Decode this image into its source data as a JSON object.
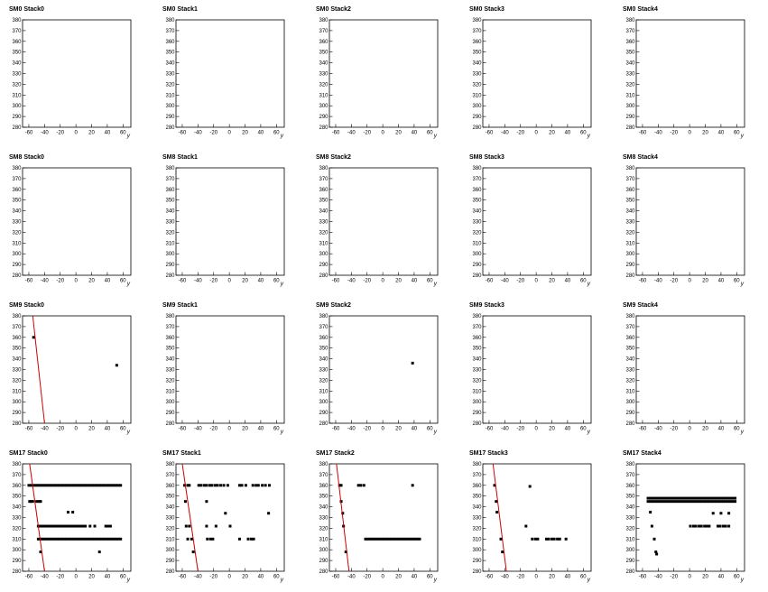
{
  "chart_data": [
    {
      "type": "scatter",
      "title": "SM0 Stack0",
      "x_label": "y",
      "color": "#000000",
      "x": [],
      "y": [],
      "xlim": [
        -68,
        70
      ],
      "xticks": [
        -60,
        -40,
        -20,
        0,
        20,
        40,
        60
      ],
      "ylim": [
        280,
        380
      ],
      "yticks": [
        280,
        290,
        300,
        310,
        320,
        330,
        340,
        350,
        360,
        370,
        380
      ]
    },
    {
      "type": "scatter",
      "title": "SM0 Stack1",
      "x_label": "y",
      "color": "#000000",
      "x": [],
      "y": [],
      "xlim": [
        -68,
        70
      ],
      "xticks": [
        -60,
        -40,
        -20,
        0,
        20,
        40,
        60
      ],
      "ylim": [
        280,
        380
      ],
      "yticks": [
        280,
        290,
        300,
        310,
        320,
        330,
        340,
        350,
        360,
        370,
        380
      ]
    },
    {
      "type": "scatter",
      "title": "SM0 Stack2",
      "x_label": "y",
      "color": "#000000",
      "x": [],
      "y": [],
      "xlim": [
        -68,
        70
      ],
      "xticks": [
        -60,
        -40,
        -20,
        0,
        20,
        40,
        60
      ],
      "ylim": [
        280,
        380
      ],
      "yticks": [
        280,
        290,
        300,
        310,
        320,
        330,
        340,
        350,
        360,
        370,
        380
      ]
    },
    {
      "type": "scatter",
      "title": "SM0 Stack3",
      "x_label": "y",
      "color": "#000000",
      "x": [],
      "y": [],
      "xlim": [
        -68,
        70
      ],
      "xticks": [
        -60,
        -40,
        -20,
        0,
        20,
        40,
        60
      ],
      "ylim": [
        280,
        380
      ],
      "yticks": [
        280,
        290,
        300,
        310,
        320,
        330,
        340,
        350,
        360,
        370,
        380
      ]
    },
    {
      "type": "scatter",
      "title": "SM0 Stack4",
      "x_label": "y",
      "color": "#000000",
      "x": [],
      "y": [],
      "xlim": [
        -68,
        70
      ],
      "xticks": [
        -60,
        -40,
        -20,
        0,
        20,
        40,
        60
      ],
      "ylim": [
        280,
        380
      ],
      "yticks": [
        280,
        290,
        300,
        310,
        320,
        330,
        340,
        350,
        360,
        370,
        380
      ]
    },
    {
      "type": "scatter",
      "title": "SM8 Stack0",
      "x_label": "y",
      "color": "#000000",
      "x": [],
      "y": [],
      "xlim": [
        -68,
        70
      ],
      "xticks": [
        -60,
        -40,
        -20,
        0,
        20,
        40,
        60
      ],
      "ylim": [
        280,
        380
      ],
      "yticks": [
        280,
        290,
        300,
        310,
        320,
        330,
        340,
        350,
        360,
        370,
        380
      ]
    },
    {
      "type": "scatter",
      "title": "SM8 Stack1",
      "x_label": "y",
      "color": "#000000",
      "x": [],
      "y": [],
      "xlim": [
        -68,
        70
      ],
      "xticks": [
        -60,
        -40,
        -20,
        0,
        20,
        40,
        60
      ],
      "ylim": [
        280,
        380
      ],
      "yticks": [
        280,
        290,
        300,
        310,
        320,
        330,
        340,
        350,
        360,
        370,
        380
      ]
    },
    {
      "type": "scatter",
      "title": "SM8 Stack2",
      "x_label": "y",
      "color": "#000000",
      "x": [],
      "y": [],
      "xlim": [
        -68,
        70
      ],
      "xticks": [
        -60,
        -40,
        -20,
        0,
        20,
        40,
        60
      ],
      "ylim": [
        280,
        380
      ],
      "yticks": [
        280,
        290,
        300,
        310,
        320,
        330,
        340,
        350,
        360,
        370,
        380
      ]
    },
    {
      "type": "scatter",
      "title": "SM8 Stack3",
      "x_label": "y",
      "color": "#000000",
      "x": [],
      "y": [],
      "xlim": [
        -68,
        70
      ],
      "xticks": [
        -60,
        -40,
        -20,
        0,
        20,
        40,
        60
      ],
      "ylim": [
        280,
        380
      ],
      "yticks": [
        280,
        290,
        300,
        310,
        320,
        330,
        340,
        350,
        360,
        370,
        380
      ]
    },
    {
      "type": "scatter",
      "title": "SM8 Stack4",
      "x_label": "y",
      "color": "#000000",
      "x": [],
      "y": [],
      "xlim": [
        -68,
        70
      ],
      "xticks": [
        -60,
        -40,
        -20,
        0,
        20,
        40,
        60
      ],
      "ylim": [
        280,
        380
      ],
      "yticks": [
        280,
        290,
        300,
        310,
        320,
        330,
        340,
        350,
        360,
        370,
        380
      ]
    },
    {
      "type": "scatter",
      "title": "SM9 Stack0",
      "x_label": "y",
      "color": "#000000",
      "x": [
        -54,
        52
      ],
      "y": [
        360,
        334
      ],
      "fit": {
        "x": [
          -55,
          -40
        ],
        "y": [
          380,
          280
        ],
        "color": "#cc0000"
      },
      "xlim": [
        -68,
        70
      ],
      "xticks": [
        -60,
        -40,
        -20,
        0,
        20,
        40,
        60
      ],
      "ylim": [
        280,
        380
      ],
      "yticks": [
        280,
        290,
        300,
        310,
        320,
        330,
        340,
        350,
        360,
        370,
        380
      ]
    },
    {
      "type": "scatter",
      "title": "SM9 Stack1",
      "x_label": "y",
      "color": "#000000",
      "x": [],
      "y": [],
      "xlim": [
        -68,
        70
      ],
      "xticks": [
        -60,
        -40,
        -20,
        0,
        20,
        40,
        60
      ],
      "ylim": [
        280,
        380
      ],
      "yticks": [
        280,
        290,
        300,
        310,
        320,
        330,
        340,
        350,
        360,
        370,
        380
      ]
    },
    {
      "type": "scatter",
      "title": "SM9 Stack2",
      "x_label": "y",
      "color": "#000000",
      "x": [
        38
      ],
      "y": [
        336
      ],
      "xlim": [
        -68,
        70
      ],
      "xticks": [
        -60,
        -40,
        -20,
        0,
        20,
        40,
        60
      ],
      "ylim": [
        280,
        380
      ],
      "yticks": [
        280,
        290,
        300,
        310,
        320,
        330,
        340,
        350,
        360,
        370,
        380
      ]
    },
    {
      "type": "scatter",
      "title": "SM9 Stack3",
      "x_label": "y",
      "color": "#000000",
      "x": [],
      "y": [],
      "xlim": [
        -68,
        70
      ],
      "xticks": [
        -60,
        -40,
        -20,
        0,
        20,
        40,
        60
      ],
      "ylim": [
        280,
        380
      ],
      "yticks": [
        280,
        290,
        300,
        310,
        320,
        330,
        340,
        350,
        360,
        370,
        380
      ]
    },
    {
      "type": "scatter",
      "title": "SM9 Stack4",
      "x_label": "y",
      "color": "#000000",
      "x": [],
      "y": [],
      "xlim": [
        -68,
        70
      ],
      "xticks": [
        -60,
        -40,
        -20,
        0,
        20,
        40,
        60
      ],
      "ylim": [
        280,
        380
      ],
      "yticks": [
        280,
        290,
        300,
        310,
        320,
        330,
        340,
        350,
        360,
        370,
        380
      ]
    },
    {
      "type": "scatter",
      "title": "SM17 Stack0",
      "x_label": "y",
      "color": "#000000",
      "x": [
        -60,
        -57,
        -54,
        -51,
        -48,
        -45,
        -42,
        -39,
        -36,
        -33,
        -30,
        -27,
        -24,
        -21,
        -18,
        -15,
        -12,
        -9,
        -6,
        -3,
        0,
        3,
        6,
        9,
        12,
        15,
        18,
        21,
        24,
        27,
        30,
        33,
        36,
        39,
        42,
        45,
        48,
        51,
        54,
        57,
        -59,
        -57,
        -55,
        -50,
        -47,
        -45,
        -48,
        -45,
        -42,
        -39,
        -36,
        -33,
        -30,
        -27,
        -24,
        -21,
        -18,
        -15,
        -12,
        -9,
        -6,
        -3,
        0,
        3,
        6,
        9,
        12,
        18,
        24,
        38,
        41,
        44,
        -48,
        -45,
        -42,
        -39,
        -36,
        -33,
        -30,
        -27,
        -24,
        -21,
        -18,
        -15,
        -12,
        -9,
        -6,
        -3,
        0,
        3,
        6,
        9,
        12,
        15,
        18,
        21,
        24,
        27,
        30,
        33,
        36,
        39,
        42,
        45,
        48,
        51,
        54,
        57,
        -10,
        -4,
        -45,
        30
      ],
      "y": [
        360,
        360,
        360,
        360,
        360,
        360,
        360,
        360,
        360,
        360,
        360,
        360,
        360,
        360,
        360,
        360,
        360,
        360,
        360,
        360,
        360,
        360,
        360,
        360,
        360,
        360,
        360,
        360,
        360,
        360,
        360,
        360,
        360,
        360,
        360,
        360,
        360,
        360,
        360,
        360,
        345,
        345,
        345,
        345,
        345,
        345,
        322,
        322,
        322,
        322,
        322,
        322,
        322,
        322,
        322,
        322,
        322,
        322,
        322,
        322,
        322,
        322,
        322,
        322,
        322,
        322,
        322,
        322,
        322,
        322,
        322,
        322,
        310,
        310,
        310,
        310,
        310,
        310,
        310,
        310,
        310,
        310,
        310,
        310,
        310,
        310,
        310,
        310,
        310,
        310,
        310,
        310,
        310,
        310,
        310,
        310,
        310,
        310,
        310,
        310,
        310,
        310,
        310,
        310,
        310,
        310,
        310,
        310,
        335,
        335,
        298,
        298
      ],
      "fit": {
        "x": [
          -59,
          -40
        ],
        "y": [
          380,
          280
        ],
        "color": "#cc0000"
      },
      "xlim": [
        -68,
        70
      ],
      "xticks": [
        -60,
        -40,
        -20,
        0,
        20,
        40,
        60
      ],
      "ylim": [
        280,
        380
      ],
      "yticks": [
        280,
        290,
        300,
        310,
        320,
        330,
        340,
        350,
        360,
        370,
        380
      ]
    },
    {
      "type": "scatter",
      "title": "SM17 Stack1",
      "x_label": "y",
      "color": "#000000",
      "x": [
        -57,
        -53,
        -51,
        -39,
        -36,
        -32,
        -29,
        -25,
        -22,
        -18,
        -15,
        -11,
        -7,
        -2,
        13,
        16,
        21,
        30,
        34,
        37,
        42,
        46,
        51,
        -56,
        -29,
        -55,
        -51,
        -29,
        -17,
        1,
        -5,
        50,
        -53,
        -48,
        -28,
        -24,
        -21,
        13,
        24,
        28,
        31,
        -46
      ],
      "y": [
        360,
        360,
        360,
        360,
        360,
        360,
        360,
        360,
        360,
        360,
        360,
        360,
        360,
        360,
        360,
        360,
        360,
        360,
        360,
        360,
        360,
        360,
        360,
        345,
        345,
        322,
        322,
        322,
        322,
        322,
        334,
        334,
        310,
        310,
        310,
        310,
        310,
        310,
        310,
        310,
        310,
        298
      ],
      "fit": {
        "x": [
          -60,
          -40
        ],
        "y": [
          380,
          280
        ],
        "color": "#cc0000"
      },
      "xlim": [
        -68,
        70
      ],
      "xticks": [
        -60,
        -40,
        -20,
        0,
        20,
        40,
        60
      ],
      "ylim": [
        280,
        380
      ],
      "yticks": [
        280,
        290,
        300,
        310,
        320,
        330,
        340,
        350,
        360,
        370,
        380
      ]
    },
    {
      "type": "scatter",
      "title": "SM17 Stack2",
      "x_label": "y",
      "color": "#000000",
      "x": [
        -55,
        -53,
        -31,
        -28,
        -24,
        38,
        -53,
        -51,
        -50,
        -47,
        -22,
        -19,
        -16,
        -13,
        -10,
        -7,
        -4,
        -1,
        2,
        5,
        8,
        11,
        14,
        17,
        20,
        23,
        26,
        29,
        32,
        35,
        38,
        41,
        44,
        47
      ],
      "y": [
        360,
        360,
        360,
        360,
        360,
        360,
        345,
        334,
        322,
        298,
        310,
        310,
        310,
        310,
        310,
        310,
        310,
        310,
        310,
        310,
        310,
        310,
        310,
        310,
        310,
        310,
        310,
        310,
        310,
        310,
        310,
        310,
        310,
        310
      ],
      "fit": {
        "x": [
          -59,
          -43
        ],
        "y": [
          380,
          280
        ],
        "color": "#cc0000"
      },
      "xlim": [
        -68,
        70
      ],
      "xticks": [
        -60,
        -40,
        -20,
        0,
        20,
        40,
        60
      ],
      "ylim": [
        280,
        380
      ],
      "yticks": [
        280,
        290,
        300,
        310,
        320,
        330,
        340,
        350,
        360,
        370,
        380
      ]
    },
    {
      "type": "scatter",
      "title": "SM17 Stack3",
      "x_label": "y",
      "color": "#000000",
      "x": [
        -53,
        -8,
        -51,
        -50,
        -13,
        -43,
        -45,
        -5,
        -1,
        2,
        13,
        16,
        20,
        23,
        27,
        30,
        38
      ],
      "y": [
        360,
        359,
        345,
        335,
        322,
        298,
        310,
        310,
        310,
        310,
        310,
        310,
        310,
        310,
        310,
        310,
        310
      ],
      "fit": {
        "x": [
          -55,
          -38
        ],
        "y": [
          380,
          280
        ],
        "color": "#cc0000"
      },
      "xlim": [
        -68,
        70
      ],
      "xticks": [
        -60,
        -40,
        -20,
        0,
        20,
        40,
        60
      ],
      "ylim": [
        280,
        380
      ],
      "yticks": [
        280,
        290,
        300,
        310,
        320,
        330,
        340,
        350,
        360,
        370,
        380
      ]
    },
    {
      "type": "scatter",
      "title": "SM17 Stack4",
      "x_label": "y",
      "color": "#000000",
      "x": [
        -53,
        -50,
        -47,
        -44,
        -41,
        -38,
        -35,
        -32,
        -29,
        -26,
        -23,
        -20,
        -17,
        -14,
        -11,
        -8,
        -5,
        -2,
        1,
        4,
        7,
        10,
        13,
        16,
        19,
        22,
        25,
        28,
        31,
        34,
        37,
        40,
        43,
        46,
        49,
        52,
        55,
        58,
        -53,
        -50,
        -47,
        -44,
        -41,
        -38,
        -35,
        -32,
        -29,
        -26,
        -23,
        -20,
        -17,
        -14,
        -11,
        -8,
        -5,
        -2,
        1,
        4,
        7,
        10,
        13,
        16,
        19,
        22,
        25,
        28,
        31,
        34,
        37,
        40,
        43,
        46,
        49,
        52,
        55,
        58,
        -50,
        -45,
        -43,
        -42,
        -48,
        1,
        5,
        8,
        12,
        15,
        19,
        22,
        25,
        36,
        39,
        43,
        46,
        50,
        30,
        40,
        50
      ],
      "y": [
        345,
        345,
        345,
        345,
        345,
        345,
        345,
        345,
        345,
        345,
        345,
        345,
        345,
        345,
        345,
        345,
        345,
        345,
        345,
        345,
        345,
        345,
        345,
        345,
        345,
        345,
        345,
        345,
        345,
        345,
        345,
        345,
        345,
        345,
        345,
        345,
        345,
        345,
        348,
        348,
        348,
        348,
        348,
        348,
        348,
        348,
        348,
        348,
        348,
        348,
        348,
        348,
        348,
        348,
        348,
        348,
        348,
        348,
        348,
        348,
        348,
        348,
        348,
        348,
        348,
        348,
        348,
        348,
        348,
        348,
        348,
        348,
        348,
        348,
        348,
        348,
        335,
        310,
        298,
        296,
        322,
        322,
        322,
        322,
        322,
        322,
        322,
        322,
        322,
        322,
        322,
        322,
        322,
        322,
        334,
        334,
        334
      ],
      "xlim": [
        -68,
        70
      ],
      "xticks": [
        -60,
        -40,
        -20,
        0,
        20,
        40,
        60
      ],
      "ylim": [
        280,
        380
      ],
      "yticks": [
        280,
        290,
        300,
        310,
        320,
        330,
        340,
        350,
        360,
        370,
        380
      ]
    }
  ]
}
